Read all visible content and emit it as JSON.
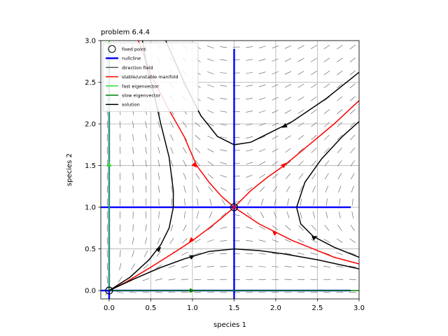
{
  "chart_data": {
    "type": "phase-portrait",
    "title": "problem 6.4.4",
    "xlabel": "species 1",
    "ylabel": "species 2",
    "xlim": [
      -0.1,
      3.0
    ],
    "ylim": [
      -0.1,
      3.0
    ],
    "xticks": [
      "0.0",
      "0.5",
      "1.0",
      "1.5",
      "2.0",
      "2.5",
      "3.0"
    ],
    "yticks": [
      "0.0",
      "0.5",
      "1.0",
      "1.5",
      "2.0",
      "2.5",
      "3.0"
    ],
    "grid": true,
    "legend": {
      "placement": "top-left",
      "entries": [
        {
          "label": "fixed point",
          "kind": "marker"
        },
        {
          "label": "nullcline",
          "color": "#0000ff"
        },
        {
          "label": "direction field",
          "color": "#555555"
        },
        {
          "label": "stable/unstable manifold",
          "color": "#ff0000"
        },
        {
          "label": "fast eigenvector",
          "color": "#33dd33"
        },
        {
          "label": "slow eigenvector",
          "color": "#008000"
        },
        {
          "label": "solution",
          "color": "#000000"
        }
      ]
    },
    "fixed_points": [
      {
        "x": 0.0,
        "y": 0.0
      },
      {
        "x": 1.5,
        "y": 1.0
      }
    ],
    "nullclines": [
      {
        "points": [
          [
            1.5,
            -0.1
          ],
          [
            1.5,
            2.9
          ]
        ]
      },
      {
        "points": [
          [
            -0.1,
            1.0
          ],
          [
            2.9,
            1.0
          ]
        ]
      },
      {
        "points": [
          [
            0.0,
            -0.1
          ],
          [
            0.0,
            2.9
          ]
        ]
      },
      {
        "points": [
          [
            -0.1,
            0.0
          ],
          [
            2.9,
            0.0
          ]
        ]
      }
    ],
    "eigenvectors": [
      {
        "kind": "fast",
        "color": "#33dd33",
        "points": [
          [
            0.0,
            0.0
          ],
          [
            0.0,
            3.0
          ]
        ],
        "arrow_at": [
          0.0,
          1.52
        ],
        "dir": [
          0,
          1
        ]
      },
      {
        "kind": "slow",
        "color": "#008000",
        "points": [
          [
            0.0,
            0.0
          ],
          [
            3.0,
            0.0
          ]
        ],
        "arrow_at": [
          1.0,
          0.0
        ],
        "dir": [
          1,
          0
        ]
      }
    ],
    "manifolds": [
      {
        "name": "stable-left",
        "points": [
          [
            0.35,
            3.0
          ],
          [
            0.5,
            2.6
          ],
          [
            0.7,
            2.2
          ],
          [
            0.9,
            1.85
          ],
          [
            1.05,
            1.5
          ],
          [
            1.2,
            1.3
          ],
          [
            1.35,
            1.13
          ],
          [
            1.5,
            1.0
          ]
        ],
        "arrows": [
          {
            "at": [
              1.03,
              1.5
            ],
            "dir": [
              1,
              -1
            ]
          }
        ]
      },
      {
        "name": "stable-right",
        "points": [
          [
            3.0,
            0.32
          ],
          [
            2.7,
            0.4
          ],
          [
            2.4,
            0.52
          ],
          [
            2.2,
            0.6
          ],
          [
            2.0,
            0.7
          ],
          [
            1.8,
            0.8
          ],
          [
            1.65,
            0.9
          ],
          [
            1.5,
            1.0
          ]
        ],
        "arrows": [
          {
            "at": [
              1.98,
              0.7
            ],
            "dir": [
              -1,
              1
            ]
          }
        ]
      },
      {
        "name": "unstable-lower",
        "points": [
          [
            0.0,
            0.0
          ],
          [
            0.2,
            0.1
          ],
          [
            0.5,
            0.28
          ],
          [
            0.8,
            0.47
          ],
          [
            1.0,
            0.6
          ],
          [
            1.2,
            0.75
          ],
          [
            1.35,
            0.87
          ],
          [
            1.5,
            1.0
          ]
        ],
        "arrows": [
          {
            "at": [
              0.98,
              0.6
            ],
            "dir": [
              -1,
              -1
            ]
          }
        ]
      },
      {
        "name": "unstable-upper",
        "points": [
          [
            1.5,
            1.0
          ],
          [
            1.7,
            1.2
          ],
          [
            1.9,
            1.36
          ],
          [
            2.1,
            1.5
          ],
          [
            2.4,
            1.75
          ],
          [
            2.7,
            2.0
          ],
          [
            3.0,
            2.28
          ]
        ],
        "arrows": [
          {
            "at": [
              2.1,
              1.51
            ],
            "dir": [
              1,
              1
            ]
          }
        ]
      }
    ],
    "solutions": [
      {
        "points": [
          [
            0.68,
            3.0
          ],
          [
            0.9,
            2.5
          ],
          [
            1.1,
            2.1
          ],
          [
            1.3,
            1.85
          ],
          [
            1.5,
            1.75
          ],
          [
            1.7,
            1.78
          ],
          [
            1.9,
            1.88
          ],
          [
            2.2,
            2.03
          ],
          [
            2.6,
            2.3
          ],
          [
            3.0,
            2.62
          ]
        ],
        "arrows": [
          {
            "at": [
              2.1,
              1.97
            ],
            "dir": [
              -1,
              -0.55
            ]
          }
        ]
      },
      {
        "points": [
          [
            0.4,
            3.0
          ],
          [
            0.45,
            2.7
          ],
          [
            0.53,
            2.4
          ],
          [
            0.62,
            2.0
          ],
          [
            0.72,
            1.6
          ],
          [
            0.77,
            1.2
          ],
          [
            0.77,
            1.0
          ],
          [
            0.72,
            0.75
          ],
          [
            0.62,
            0.55
          ],
          [
            0.48,
            0.37
          ],
          [
            0.25,
            0.16
          ],
          [
            0.0,
            0.0
          ]
        ],
        "arrows": [
          {
            "at": [
              0.6,
              0.5
            ],
            "dir": [
              1,
              1
            ]
          }
        ]
      },
      {
        "points": [
          [
            0.0,
            0.0
          ],
          [
            0.3,
            0.14
          ],
          [
            0.6,
            0.27
          ],
          [
            0.9,
            0.38
          ],
          [
            1.2,
            0.47
          ],
          [
            1.5,
            0.5
          ],
          [
            1.8,
            0.48
          ],
          [
            2.1,
            0.44
          ],
          [
            2.5,
            0.37
          ],
          [
            3.0,
            0.26
          ]
        ],
        "arrows": [
          {
            "at": [
              1.0,
              0.41
            ],
            "dir": [
              1,
              0.45
            ]
          }
        ]
      },
      {
        "points": [
          [
            3.0,
            2.03
          ],
          [
            2.8,
            1.85
          ],
          [
            2.55,
            1.58
          ],
          [
            2.35,
            1.3
          ],
          [
            2.25,
            1.0
          ],
          [
            2.3,
            0.8
          ],
          [
            2.45,
            0.65
          ],
          [
            2.7,
            0.52
          ],
          [
            3.0,
            0.4
          ]
        ],
        "arrows": [
          {
            "at": [
              2.47,
              0.64
            ],
            "dir": [
              1,
              0.5
            ]
          }
        ]
      }
    ]
  }
}
